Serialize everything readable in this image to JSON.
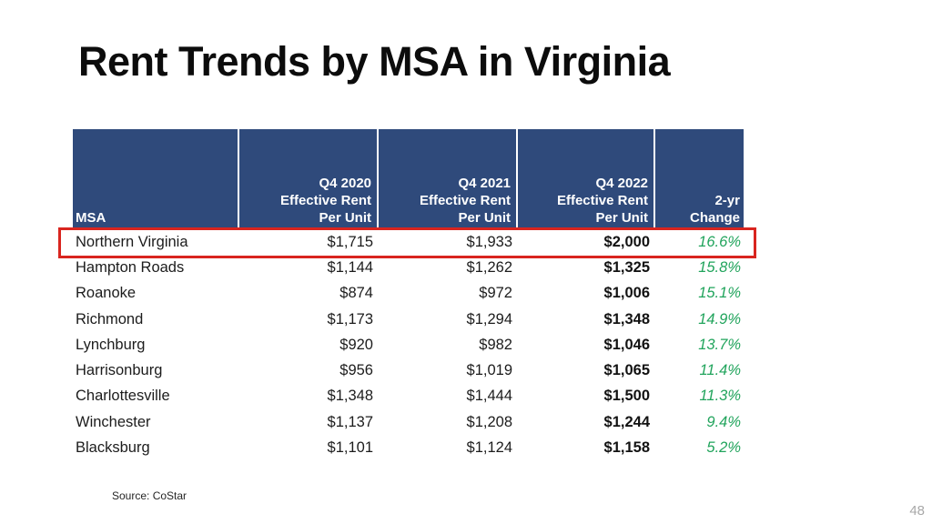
{
  "slide": {
    "title": "Rent Trends by MSA in Virginia",
    "source": "Source: CoStar",
    "page_number": "48"
  },
  "colors": {
    "header_bg": "#2F4A7B",
    "highlight_border": "#D9251F",
    "positive_green": "#21A45C",
    "title_color": "#0C0C0C",
    "body_text": "#1C1C1C",
    "bold_text": "#121212",
    "source_color": "#262626",
    "page_number_color": "#A8A8A8"
  },
  "table": {
    "headers": [
      {
        "label": "MSA"
      },
      {
        "label": "Q4 2020\nEffective Rent\nPer Unit"
      },
      {
        "label": "Q4 2021\nEffective Rent\nPer Unit"
      },
      {
        "label": "Q4 2022\nEffective Rent\nPer Unit"
      },
      {
        "label": "2-yr\nChange"
      }
    ],
    "rows": [
      {
        "msa": "Northern Virginia",
        "q4_2020": "$1,715",
        "q4_2021": "$1,933",
        "q4_2022": "$2,000",
        "change_2yr": "16.6%",
        "highlighted": true
      },
      {
        "msa": "Hampton Roads",
        "q4_2020": "$1,144",
        "q4_2021": "$1,262",
        "q4_2022": "$1,325",
        "change_2yr": "15.8%",
        "highlighted": false
      },
      {
        "msa": "Roanoke",
        "q4_2020": "$874",
        "q4_2021": "$972",
        "q4_2022": "$1,006",
        "change_2yr": "15.1%",
        "highlighted": false
      },
      {
        "msa": "Richmond",
        "q4_2020": "$1,173",
        "q4_2021": "$1,294",
        "q4_2022": "$1,348",
        "change_2yr": "14.9%",
        "highlighted": false
      },
      {
        "msa": "Lynchburg",
        "q4_2020": "$920",
        "q4_2021": "$982",
        "q4_2022": "$1,046",
        "change_2yr": "13.7%",
        "highlighted": false
      },
      {
        "msa": "Harrisonburg",
        "q4_2020": "$956",
        "q4_2021": "$1,019",
        "q4_2022": "$1,065",
        "change_2yr": "11.4%",
        "highlighted": false
      },
      {
        "msa": "Charlottesville",
        "q4_2020": "$1,348",
        "q4_2021": "$1,444",
        "q4_2022": "$1,500",
        "change_2yr": "11.3%",
        "highlighted": false
      },
      {
        "msa": "Winchester",
        "q4_2020": "$1,137",
        "q4_2021": "$1,208",
        "q4_2022": "$1,244",
        "change_2yr": "9.4%",
        "highlighted": false
      },
      {
        "msa": "Blacksburg",
        "q4_2020": "$1,101",
        "q4_2021": "$1,124",
        "q4_2022": "$1,158",
        "change_2yr": "5.2%",
        "highlighted": false
      }
    ]
  },
  "chart_data": {
    "type": "table",
    "title": "Rent Trends by MSA in Virginia",
    "columns": [
      "MSA",
      "Q4 2020 Effective Rent Per Unit",
      "Q4 2021 Effective Rent Per Unit",
      "Q4 2022 Effective Rent Per Unit",
      "2-yr Change"
    ],
    "rows": [
      [
        "Northern Virginia",
        1715,
        1933,
        2000,
        "16.6%"
      ],
      [
        "Hampton Roads",
        1144,
        1262,
        1325,
        "15.8%"
      ],
      [
        "Roanoke",
        874,
        972,
        1006,
        "15.1%"
      ],
      [
        "Richmond",
        1173,
        1294,
        1348,
        "14.9%"
      ],
      [
        "Lynchburg",
        920,
        982,
        1046,
        "13.7%"
      ],
      [
        "Harrisonburg",
        956,
        1019,
        1065,
        "11.4%"
      ],
      [
        "Charlottesville",
        1348,
        1444,
        1500,
        "11.3%"
      ],
      [
        "Winchester",
        1137,
        1208,
        1244,
        "9.4%"
      ],
      [
        "Blacksburg",
        1101,
        1124,
        1158,
        "5.2%"
      ]
    ],
    "highlighted_row": "Northern Virginia",
    "source": "CoStar"
  }
}
